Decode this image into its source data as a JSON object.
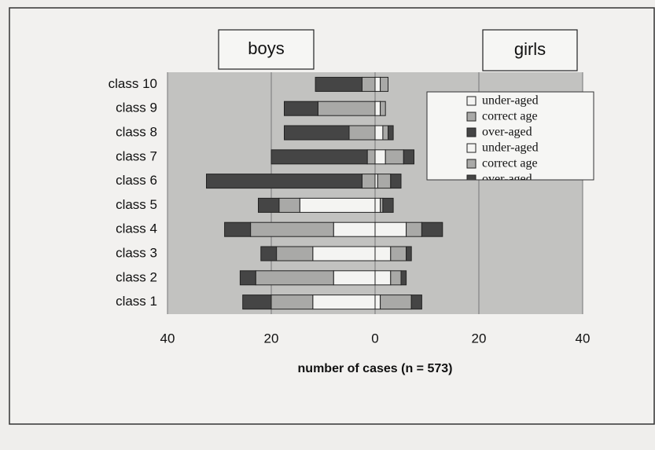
{
  "chart_data": {
    "type": "diverging-bar",
    "axis_label": "number of cases (n = 573)",
    "categories": [
      "class 1",
      "class 2",
      "class 3",
      "class 4",
      "class 5",
      "class 6",
      "class 7",
      "class 8",
      "class 9",
      "class 10"
    ],
    "groups": [
      {
        "name": "boys",
        "series": [
          {
            "name": "under-aged",
            "color": "#f4f4f2",
            "values": [
              12,
              8,
              12,
              8,
              14.5,
              0,
              0,
              0,
              0,
              0
            ]
          },
          {
            "name": "correct age",
            "color": "#a9a9a7",
            "values": [
              8,
              15,
              7,
              16,
              4,
              2.5,
              1.5,
              5,
              11,
              2.5
            ]
          },
          {
            "name": "over-aged",
            "color": "#454545",
            "values": [
              5.5,
              3,
              3,
              5,
              4,
              30,
              18.5,
              12.5,
              6.5,
              9
            ]
          }
        ]
      },
      {
        "name": "girls",
        "series": [
          {
            "name": "under-aged",
            "color": "#f4f4f2",
            "values": [
              1,
              3,
              3,
              6,
              1,
              0.5,
              2,
              1.5,
              1,
              1
            ]
          },
          {
            "name": "correct age",
            "color": "#a9a9a7",
            "values": [
              6,
              2,
              3,
              3,
              0.5,
              2.5,
              3.5,
              1,
              1,
              1.5
            ]
          },
          {
            "name": "over-aged",
            "color": "#454545",
            "values": [
              2,
              1,
              1,
              4,
              2,
              2,
              2,
              1,
              0,
              0
            ]
          }
        ]
      }
    ],
    "xlim": [
      -40,
      40
    ],
    "xticks": [
      {
        "value": -40,
        "label": "40"
      },
      {
        "value": -20,
        "label": "20"
      },
      0,
      20,
      40
    ],
    "grid": true
  }
}
